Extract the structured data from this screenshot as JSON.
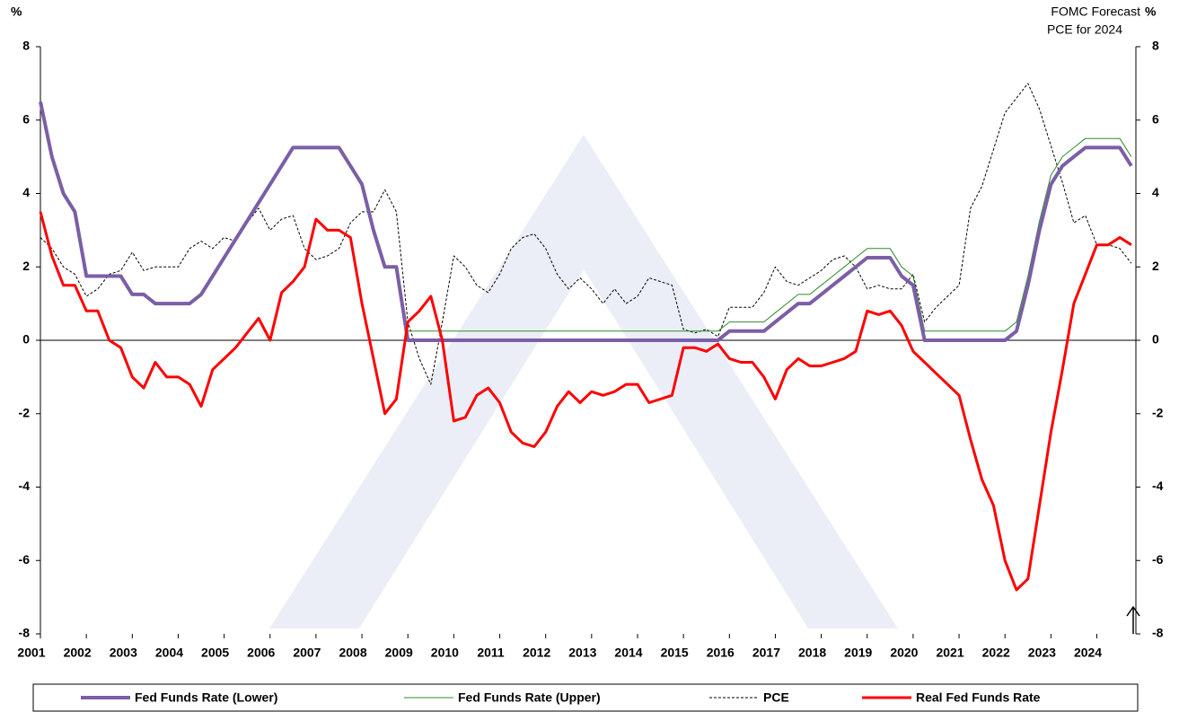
{
  "chart_data": {
    "type": "line",
    "y_label": "%",
    "y2_label": "%",
    "annotation": [
      "FOMC Forecast",
      "PCE for 2024"
    ],
    "xlim": [
      2001,
      2024.85
    ],
    "xticks": [
      2001,
      2002,
      2003,
      2004,
      2005,
      2006,
      2007,
      2008,
      2009,
      2010,
      2011,
      2012,
      2013,
      2014,
      2015,
      2016,
      2017,
      2018,
      2019,
      2020,
      2021,
      2022,
      2023,
      2024
    ],
    "ylim": [
      -8,
      8
    ],
    "yticks": [
      -8,
      -6,
      -4,
      -2,
      0,
      2,
      4,
      6,
      8
    ],
    "y2lim": [
      -8,
      8
    ],
    "y2ticks": [
      -8,
      -6,
      -4,
      -2,
      0,
      2,
      4,
      6,
      8
    ],
    "x": [
      2001,
      2001.25,
      2001.5,
      2001.75,
      2002,
      2002.25,
      2002.5,
      2002.75,
      2003,
      2003.25,
      2003.5,
      2003.75,
      2004,
      2004.25,
      2004.5,
      2004.75,
      2005,
      2005.25,
      2005.5,
      2005.75,
      2006,
      2006.25,
      2006.5,
      2006.75,
      2007,
      2007.25,
      2007.5,
      2007.75,
      2008,
      2008.25,
      2008.5,
      2008.75,
      2009,
      2009.25,
      2009.5,
      2009.75,
      2010,
      2010.25,
      2010.5,
      2010.75,
      2011,
      2011.25,
      2011.5,
      2011.75,
      2012,
      2012.25,
      2012.5,
      2012.75,
      2013,
      2013.25,
      2013.5,
      2013.75,
      2014,
      2014.25,
      2014.5,
      2014.75,
      2015,
      2015.25,
      2015.5,
      2015.75,
      2016,
      2016.25,
      2016.5,
      2016.75,
      2017,
      2017.25,
      2017.5,
      2017.75,
      2018,
      2018.25,
      2018.5,
      2018.75,
      2019,
      2019.25,
      2019.5,
      2019.75,
      2020,
      2020.25,
      2020.5,
      2020.75,
      2021,
      2021.25,
      2021.5,
      2021.75,
      2022,
      2022.25,
      2022.5,
      2022.75,
      2023,
      2023.25,
      2023.5,
      2023.75,
      2024,
      2024.25,
      2024.5,
      2024.75
    ],
    "series": [
      {
        "name": "Fed Funds Rate (Lower)",
        "color": "#7b5ea7",
        "width": 4,
        "dash": false,
        "values": [
          6.5,
          5.0,
          4.0,
          3.5,
          1.75,
          1.75,
          1.75,
          1.75,
          1.25,
          1.25,
          1.0,
          1.0,
          1.0,
          1.0,
          1.25,
          1.75,
          2.25,
          2.75,
          3.25,
          3.75,
          4.25,
          4.75,
          5.25,
          5.25,
          5.25,
          5.25,
          5.25,
          4.75,
          4.25,
          3.0,
          2.0,
          2.0,
          0,
          0,
          0,
          0,
          0,
          0,
          0,
          0,
          0,
          0,
          0,
          0,
          0,
          0,
          0,
          0,
          0,
          0,
          0,
          0,
          0,
          0,
          0,
          0,
          0,
          0,
          0,
          0,
          0.25,
          0.25,
          0.25,
          0.25,
          0.5,
          0.75,
          1.0,
          1.0,
          1.25,
          1.5,
          1.75,
          2.0,
          2.25,
          2.25,
          2.25,
          1.75,
          1.5,
          0,
          0,
          0,
          0,
          0,
          0,
          0,
          0,
          0.25,
          1.5,
          3.0,
          4.25,
          4.75,
          5.0,
          5.25,
          5.25,
          5.25,
          5.25,
          4.75
        ]
      },
      {
        "name": "Fed Funds Rate (Upper)",
        "color": "#2e8b2e",
        "width": 1,
        "dash": false,
        "values": [
          6.5,
          5.0,
          4.0,
          3.5,
          1.75,
          1.75,
          1.75,
          1.75,
          1.25,
          1.25,
          1.0,
          1.0,
          1.0,
          1.0,
          1.25,
          1.75,
          2.25,
          2.75,
          3.25,
          3.75,
          4.25,
          4.75,
          5.25,
          5.25,
          5.25,
          5.25,
          5.25,
          4.75,
          4.25,
          3.0,
          2.0,
          2.0,
          0.25,
          0.25,
          0.25,
          0.25,
          0.25,
          0.25,
          0.25,
          0.25,
          0.25,
          0.25,
          0.25,
          0.25,
          0.25,
          0.25,
          0.25,
          0.25,
          0.25,
          0.25,
          0.25,
          0.25,
          0.25,
          0.25,
          0.25,
          0.25,
          0.25,
          0.25,
          0.25,
          0.25,
          0.5,
          0.5,
          0.5,
          0.5,
          0.75,
          1.0,
          1.25,
          1.25,
          1.5,
          1.75,
          2.0,
          2.25,
          2.5,
          2.5,
          2.5,
          2.0,
          1.75,
          0.25,
          0.25,
          0.25,
          0.25,
          0.25,
          0.25,
          0.25,
          0.25,
          0.5,
          1.75,
          3.25,
          4.5,
          5.0,
          5.25,
          5.5,
          5.5,
          5.5,
          5.5,
          5.0
        ]
      },
      {
        "name": "PCE",
        "color": "#000000",
        "width": 1,
        "dash": true,
        "values": [
          2.8,
          2.5,
          2.0,
          1.8,
          1.2,
          1.4,
          1.8,
          1.9,
          2.4,
          1.9,
          2.0,
          2.0,
          2.0,
          2.5,
          2.7,
          2.5,
          2.8,
          2.7,
          3.2,
          3.6,
          3.0,
          3.3,
          3.4,
          2.5,
          2.2,
          2.3,
          2.5,
          3.2,
          3.5,
          3.5,
          4.1,
          3.5,
          0.5,
          -0.5,
          -1.2,
          0.5,
          2.3,
          2.0,
          1.5,
          1.3,
          1.8,
          2.5,
          2.8,
          2.9,
          2.5,
          1.8,
          1.4,
          1.7,
          1.4,
          1.0,
          1.4,
          1.0,
          1.2,
          1.7,
          1.6,
          1.5,
          0.3,
          0.2,
          0.3,
          0.1,
          0.9,
          0.9,
          0.9,
          1.3,
          2.0,
          1.6,
          1.5,
          1.7,
          1.9,
          2.2,
          2.3,
          2.0,
          1.4,
          1.5,
          1.4,
          1.4,
          1.8,
          0.5,
          0.9,
          1.2,
          1.5,
          3.6,
          4.2,
          5.2,
          6.2,
          6.6,
          7.0,
          6.3,
          5.3,
          4.3,
          3.2,
          3.4,
          2.6,
          2.6,
          2.5,
          2.1
        ]
      },
      {
        "name": "Real Fed Funds Rate",
        "color": "#ff0000",
        "width": 3,
        "dash": false,
        "values": [
          3.5,
          2.3,
          1.5,
          1.5,
          0.8,
          0.8,
          0.0,
          -0.2,
          -1.0,
          -1.3,
          -0.6,
          -1.0,
          -1.0,
          -1.2,
          -1.8,
          -0.8,
          -0.5,
          -0.2,
          0.2,
          0.6,
          0.0,
          1.3,
          1.6,
          2.0,
          3.3,
          3.0,
          3.0,
          2.8,
          1.0,
          -0.5,
          -2.0,
          -1.6,
          0.5,
          0.8,
          1.2,
          0.0,
          -2.2,
          -2.1,
          -1.5,
          -1.3,
          -1.7,
          -2.5,
          -2.8,
          -2.9,
          -2.5,
          -1.8,
          -1.4,
          -1.7,
          -1.4,
          -1.5,
          -1.4,
          -1.2,
          -1.2,
          -1.7,
          -1.6,
          -1.5,
          -0.2,
          -0.2,
          -0.3,
          -0.1,
          -0.5,
          -0.6,
          -0.6,
          -1.0,
          -1.6,
          -0.8,
          -0.5,
          -0.7,
          -0.7,
          -0.6,
          -0.5,
          -0.3,
          0.8,
          0.7,
          0.8,
          0.4,
          -0.3,
          -0.6,
          -0.9,
          -1.2,
          -1.5,
          -2.7,
          -3.8,
          -4.5,
          -6.0,
          -6.8,
          -6.5,
          -4.5,
          -2.5,
          -0.8,
          1.0,
          1.8,
          2.6,
          2.6,
          2.8,
          2.6
        ]
      }
    ]
  }
}
